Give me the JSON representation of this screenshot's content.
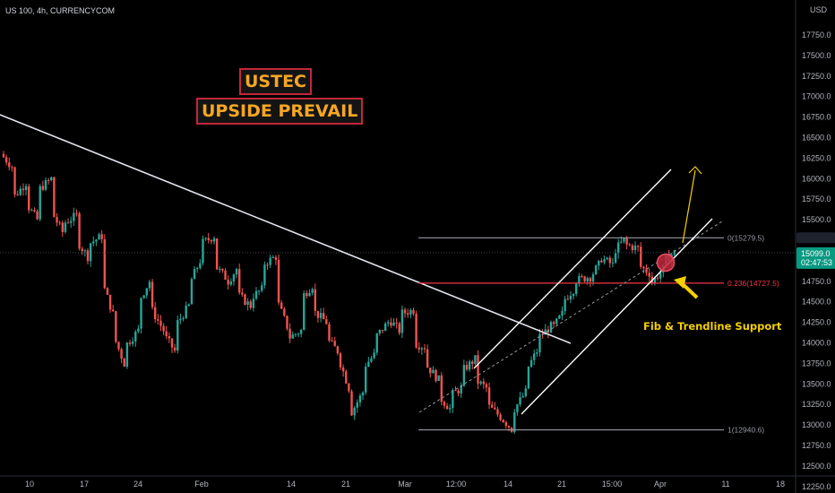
{
  "header": {
    "symbol": "US 100, 4h, CURRENCYCOM",
    "currency": "USD"
  },
  "title_boxes": {
    "line1": "USTEC",
    "line2": "UPSIDE PREVAIL"
  },
  "annotation": "Fib & Trendline Support",
  "last_price": {
    "value": "15099.0",
    "countdown": "02:47:53"
  },
  "colors": {
    "up": "#26a69a",
    "down": "#ef5350",
    "fib0": "#9598a1",
    "fib236": "#f23645",
    "arrow": "#f5d000",
    "title_border": "#c2273a",
    "title_text": "#f5a623"
  },
  "chart_data": {
    "type": "candlestick",
    "y_axis": {
      "range": [
        12130,
        18000
      ],
      "ticks": [
        "17750.0",
        "17500.0",
        "17250.0",
        "17000.0",
        "16750.0",
        "16500.0",
        "16250.0",
        "16000.0",
        "15750.0",
        "15500.0",
        "15250.0",
        "15000.0",
        "14750.0",
        "14500.0",
        "14250.0",
        "14000.0",
        "13750.0",
        "13500.0",
        "13250.0",
        "13000.0",
        "12750.0",
        "12500.0",
        "12250.0"
      ]
    },
    "x_axis": {
      "ticks": [
        "10",
        "17",
        "24",
        "Feb",
        "14",
        "21",
        "Mar",
        "12:00",
        "14",
        "21",
        "15:00",
        "Apr",
        "11",
        "18"
      ]
    },
    "price_path": [
      [
        16300,
        16150
      ],
      [
        15750,
        15950
      ],
      [
        15700,
        15500
      ],
      [
        15850,
        16000
      ],
      [
        15600,
        15350
      ],
      [
        15450,
        15550
      ],
      [
        15250,
        15050
      ],
      [
        15200,
        15300
      ],
      [
        14750,
        14350
      ],
      [
        14100,
        13750
      ],
      [
        13950,
        14150
      ],
      [
        14500,
        14750
      ],
      [
        14450,
        14150
      ],
      [
        14100,
        13900
      ],
      [
        14200,
        14450
      ],
      [
        14700,
        15000
      ],
      [
        15200,
        15300
      ],
      [
        14950,
        14800
      ],
      [
        14700,
        14900
      ],
      [
        14600,
        14450
      ],
      [
        14550,
        14650
      ],
      [
        14950,
        15050
      ],
      [
        14550,
        14200
      ],
      [
        14050,
        14150
      ],
      [
        14550,
        14700
      ],
      [
        14400,
        14250
      ],
      [
        14050,
        13900
      ],
      [
        13850,
        13450
      ],
      [
        13100,
        13400
      ],
      [
        13700,
        13850
      ],
      [
        14050,
        14250
      ],
      [
        14300,
        14150
      ],
      [
        14350,
        14400
      ],
      [
        14000,
        13950
      ],
      [
        13750,
        13550
      ],
      [
        13350,
        13200
      ],
      [
        13350,
        13450
      ],
      [
        13650,
        13800
      ],
      [
        13550,
        13450
      ],
      [
        13250,
        13100
      ],
      [
        13100,
        12950
      ],
      [
        13150,
        13400
      ],
      [
        13650,
        13900
      ],
      [
        14050,
        14200
      ],
      [
        14150,
        14350
      ],
      [
        14500,
        14650
      ],
      [
        14750,
        14800
      ],
      [
        14750,
        14950
      ],
      [
        15050,
        14950
      ],
      [
        15100,
        15250
      ],
      [
        15200,
        15150
      ],
      [
        14950,
        14850
      ],
      [
        14700,
        14900
      ],
      [
        15000,
        15099
      ]
    ],
    "levels": [
      {
        "label": "0(15279.5)",
        "value": 15279.5
      },
      {
        "label": "0.236(14727.5)",
        "value": 14727.5
      },
      {
        "label": "1(12940.6)",
        "value": 12940.6
      }
    ],
    "last_price": 15099.0
  }
}
